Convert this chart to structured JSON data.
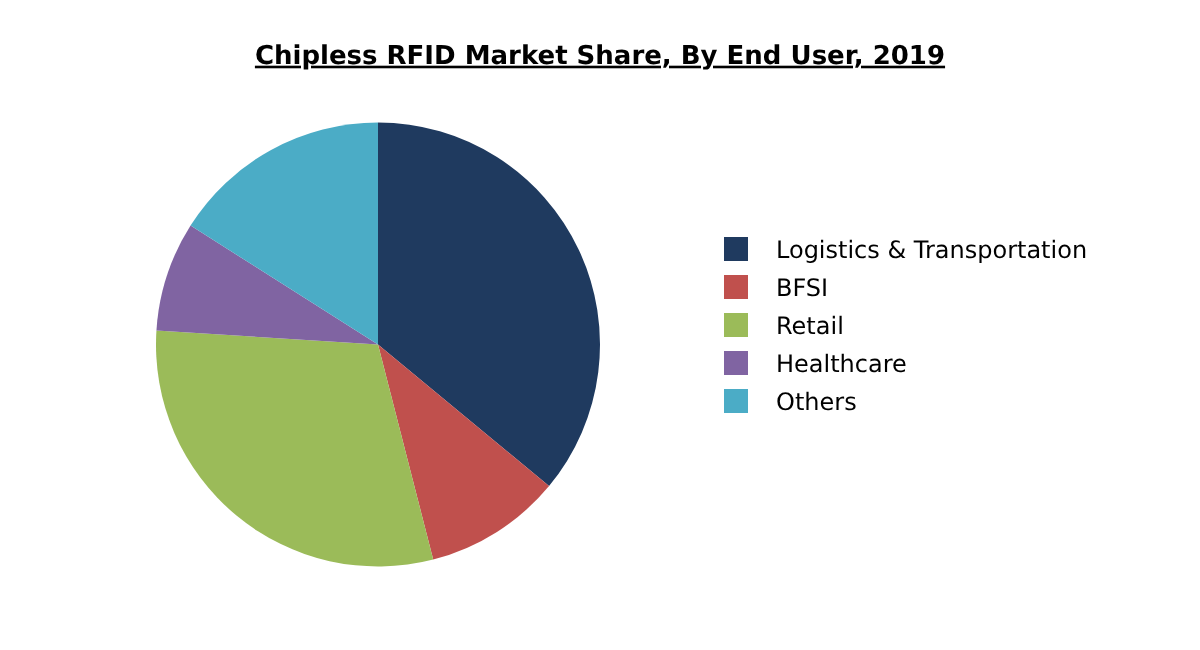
{
  "chart_data": {
    "type": "pie",
    "title": "Chipless RFID Market Share, By End User, 2019",
    "categories": [
      "Logistics & Transportation",
      "BFSI",
      "Retail",
      "Healthcare",
      "Others"
    ],
    "values": [
      36,
      10,
      30,
      8,
      16
    ],
    "colors": [
      "#1f3a5f",
      "#c0504d",
      "#9bbb59",
      "#8064a2",
      "#4bacc6"
    ],
    "legend": "right"
  }
}
